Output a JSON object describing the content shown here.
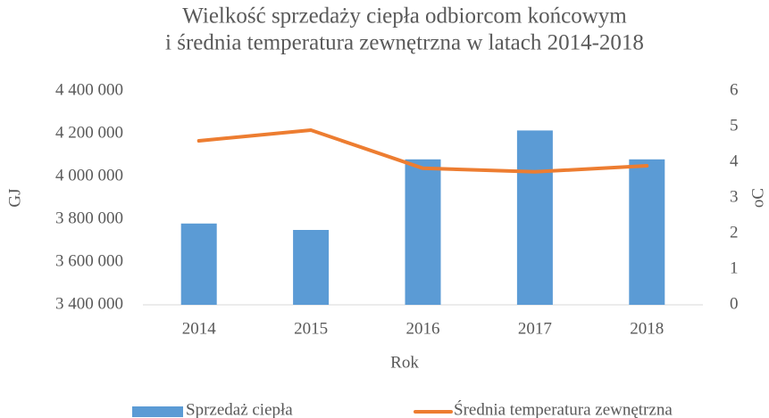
{
  "chart_data": {
    "type": "bar_line",
    "title": [
      "Wielkość sprzedaży ciepła odbiorcom końcowym",
      "i średnia temperatura zewnętrzna w latach 2014-2018"
    ],
    "xlabel": "Rok",
    "ylabel": "GJ",
    "y2label": "oC",
    "categories": [
      "2014",
      "2015",
      "2016",
      "2017",
      "2018"
    ],
    "series": [
      {
        "name": "Sprzedaż ciepła",
        "type": "bar",
        "color": "#5b9bd5",
        "values": [
          3780000,
          3750000,
          4080000,
          4215000,
          4080000
        ]
      },
      {
        "name": "Średnia temperatura zewnętrzna",
        "type": "line",
        "axis": "y2",
        "color": "#ed7d31",
        "values": [
          4.6,
          4.9,
          3.83,
          3.73,
          3.9
        ]
      }
    ],
    "ylim": [
      3400000,
      4400000
    ],
    "yticks": [
      {
        "value": 3400000,
        "label": "3 400 000"
      },
      {
        "value": 3600000,
        "label": "3 600 000"
      },
      {
        "value": 3800000,
        "label": "3 800 000"
      },
      {
        "value": 4000000,
        "label": "4 000 000"
      },
      {
        "value": 4200000,
        "label": "4 200 000"
      },
      {
        "value": 4400000,
        "label": "4 400 000"
      }
    ],
    "y2lim": [
      0,
      6
    ],
    "y2ticks": [
      0,
      1,
      2,
      3,
      4,
      5,
      6
    ],
    "legend": "bottom",
    "grid": false
  }
}
